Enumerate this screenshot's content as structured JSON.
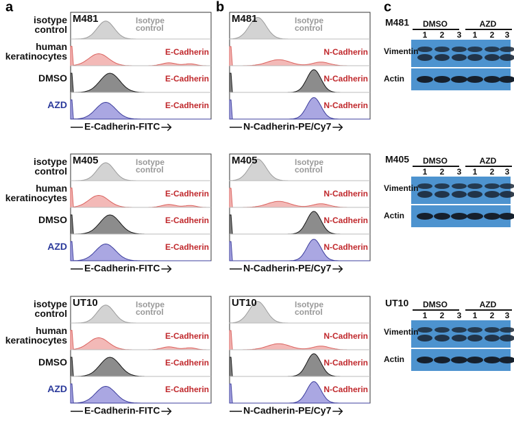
{
  "panel_labels": [
    "a",
    "b",
    "c"
  ],
  "cell_lines": [
    "M481",
    "M405",
    "UT10"
  ],
  "row_labels": [
    [
      "isotype",
      "control"
    ],
    [
      "human",
      "keratinocytes"
    ],
    [
      "DMSO"
    ],
    [
      "AZD"
    ]
  ],
  "flow_panels": [
    {
      "marker": "E-Cadherin",
      "isotype_label": [
        "Isotype",
        "control"
      ],
      "axis_label": "E-Cadherin-FITC"
    },
    {
      "marker": "N-Cadherin",
      "isotype_label": [
        "Isotype",
        "control"
      ],
      "axis_label": "N-Cadherin-PE/Cy7"
    }
  ],
  "blots": {
    "groups": [
      "DMSO",
      "AZD"
    ],
    "lanes": [
      "1",
      "2",
      "3"
    ],
    "proteins": [
      "Vimentin",
      "Actin"
    ]
  }
}
